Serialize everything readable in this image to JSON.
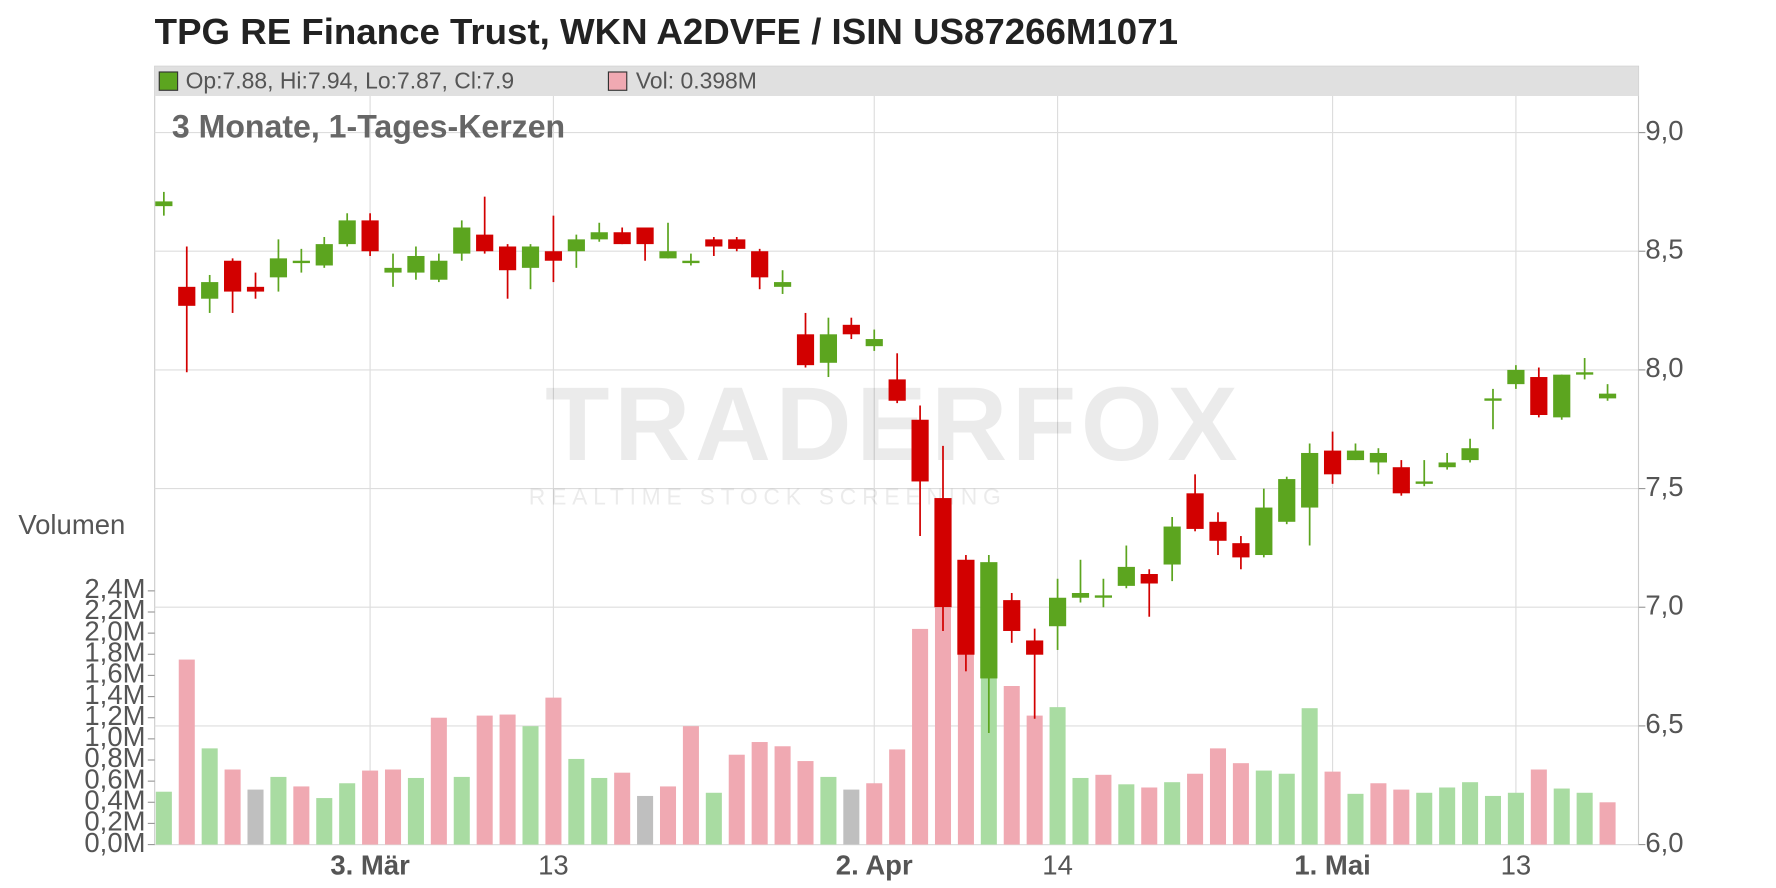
{
  "chart_data": {
    "type": "candlestick",
    "title": "TPG RE Finance Trust, WKN A2DVFE / ISIN US87266M1071",
    "subtitle": "3 Monate, 1-Tages-Kerzen",
    "header_ohlc": "Op:7.88, Hi:7.94, Lo:7.87, Cl:7.9",
    "header_volume": "Vol: 0.398M",
    "volume_axis_label": "Volumen",
    "watermark": "TRADERFOX",
    "watermark_sub": "REALTIME STOCK SCREENING",
    "categories": [
      null,
      null,
      null,
      null,
      null,
      null,
      null,
      null,
      null,
      "3. Mär",
      null,
      null,
      null,
      null,
      null,
      null,
      null,
      "13",
      null,
      null,
      null,
      null,
      null,
      null,
      null,
      null,
      null,
      null,
      null,
      null,
      null,
      "2. Apr",
      null,
      null,
      null,
      null,
      null,
      null,
      null,
      "14",
      null,
      null,
      null,
      null,
      null,
      null,
      null,
      null,
      null,
      null,
      null,
      "1. Mai",
      null,
      null,
      null,
      null,
      null,
      null,
      null,
      "13",
      null,
      null,
      null,
      null
    ],
    "open": [
      8.69,
      8.35,
      8.3,
      8.46,
      8.35,
      8.39,
      8.45,
      8.44,
      8.53,
      8.63,
      8.41,
      8.41,
      8.38,
      8.49,
      8.57,
      8.52,
      8.43,
      8.5,
      8.5,
      8.55,
      8.58,
      8.6,
      8.47,
      8.45,
      8.55,
      8.55,
      8.5,
      8.35,
      8.15,
      8.03,
      8.19,
      8.1,
      7.96,
      7.79,
      7.46,
      7.2,
      6.7,
      7.03,
      6.86,
      6.92,
      7.04,
      7.04,
      7.09,
      7.14,
      7.18,
      7.48,
      7.36,
      7.27,
      7.22,
      7.36,
      7.42,
      7.66,
      7.62,
      7.61,
      7.59,
      7.52,
      7.59,
      7.62,
      7.87,
      7.94,
      7.97,
      7.8,
      7.98,
      7.88
    ],
    "high": [
      8.75,
      8.52,
      8.4,
      8.47,
      8.41,
      8.55,
      8.51,
      8.56,
      8.66,
      8.66,
      8.49,
      8.52,
      8.49,
      8.63,
      8.73,
      8.53,
      8.53,
      8.65,
      8.57,
      8.62,
      8.6,
      8.6,
      8.62,
      8.49,
      8.56,
      8.56,
      8.51,
      8.42,
      8.24,
      8.22,
      8.22,
      8.17,
      8.07,
      7.85,
      7.68,
      7.22,
      7.22,
      7.06,
      6.91,
      7.12,
      7.2,
      7.12,
      7.26,
      7.16,
      7.38,
      7.56,
      7.4,
      7.3,
      7.5,
      7.55,
      7.69,
      7.74,
      7.69,
      7.67,
      7.62,
      7.62,
      7.65,
      7.71,
      7.92,
      8.02,
      8.01,
      7.98,
      8.05,
      7.94
    ],
    "low": [
      8.65,
      7.99,
      8.24,
      8.24,
      8.3,
      8.33,
      8.41,
      8.43,
      8.52,
      8.48,
      8.35,
      8.38,
      8.37,
      8.46,
      8.49,
      8.3,
      8.34,
      8.37,
      8.43,
      8.54,
      8.53,
      8.46,
      8.47,
      8.44,
      8.48,
      8.5,
      8.34,
      8.32,
      8.01,
      7.97,
      8.13,
      8.08,
      7.86,
      7.3,
      6.9,
      6.73,
      6.47,
      6.85,
      6.53,
      6.82,
      7.02,
      7.0,
      7.08,
      6.96,
      7.11,
      7.32,
      7.22,
      7.16,
      7.21,
      7.35,
      7.26,
      7.52,
      7.62,
      7.56,
      7.47,
      7.51,
      7.58,
      7.61,
      7.75,
      7.92,
      7.8,
      7.79,
      7.96,
      7.87
    ],
    "close": [
      8.71,
      8.27,
      8.37,
      8.33,
      8.33,
      8.47,
      8.46,
      8.53,
      8.63,
      8.5,
      8.43,
      8.48,
      8.46,
      8.6,
      8.5,
      8.42,
      8.52,
      8.46,
      8.55,
      8.58,
      8.53,
      8.53,
      8.5,
      8.46,
      8.52,
      8.51,
      8.39,
      8.37,
      8.02,
      8.15,
      8.15,
      8.13,
      7.87,
      7.53,
      7.0,
      6.8,
      7.19,
      6.9,
      6.8,
      7.04,
      7.06,
      7.05,
      7.17,
      7.1,
      7.34,
      7.33,
      7.28,
      7.21,
      7.42,
      7.54,
      7.65,
      7.56,
      7.66,
      7.65,
      7.48,
      7.53,
      7.61,
      7.67,
      7.88,
      8.0,
      7.81,
      7.98,
      7.99,
      7.9
    ],
    "volume": [
      0.5,
      1.75,
      0.91,
      0.71,
      0.52,
      0.64,
      0.55,
      0.44,
      0.58,
      0.7,
      0.71,
      0.63,
      1.2,
      0.64,
      1.22,
      1.23,
      1.12,
      1.39,
      0.81,
      0.63,
      0.68,
      0.46,
      0.55,
      1.12,
      0.49,
      0.85,
      0.97,
      0.93,
      0.79,
      0.64,
      0.52,
      0.58,
      0.9,
      2.04,
      2.24,
      1.83,
      1.66,
      1.5,
      1.22,
      1.3,
      0.63,
      0.66,
      0.57,
      0.54,
      0.59,
      0.67,
      0.91,
      0.77,
      0.7,
      0.67,
      1.29,
      0.69,
      0.48,
      0.58,
      0.52,
      0.49,
      0.54,
      0.59,
      0.46,
      0.49,
      0.71,
      0.53,
      0.49,
      0.4
    ],
    "up_color": "#5ca51f",
    "down_color": "#d20000",
    "volume_up_color": "#a9dca2",
    "volume_down_color": "#f0a9b2",
    "volume_flat_color": "#bfbfbf",
    "ylim": [
      6.0,
      9.0
    ],
    "yticks": [
      {
        "value": 6.0,
        "label": "6,0"
      },
      {
        "value": 6.5,
        "label": "6,5"
      },
      {
        "value": 7.0,
        "label": "7,0"
      },
      {
        "value": 7.5,
        "label": "7,5"
      },
      {
        "value": 8.0,
        "label": "8,0"
      },
      {
        "value": 8.5,
        "label": "8,5"
      },
      {
        "value": 9.0,
        "label": "9,0"
      }
    ],
    "y2lim": [
      0,
      2.4
    ],
    "y2ticks": [
      {
        "value": 0,
        "label": "0,0M"
      },
      {
        "value": 0.2,
        "label": "0,2M"
      },
      {
        "value": 0.4,
        "label": "0,4M"
      },
      {
        "value": 0.6,
        "label": "0,6M"
      },
      {
        "value": 0.8,
        "label": "0,8M"
      },
      {
        "value": 1.0,
        "label": "1,0M"
      },
      {
        "value": 1.2,
        "label": "1,2M"
      },
      {
        "value": 1.4,
        "label": "1,4M"
      },
      {
        "value": 1.6,
        "label": "1,6M"
      },
      {
        "value": 1.8,
        "label": "1,8M"
      },
      {
        "value": 2.0,
        "label": "2,0M"
      },
      {
        "value": 2.2,
        "label": "2,2M"
      },
      {
        "value": 2.4,
        "label": "2,4M"
      }
    ],
    "grid": true
  }
}
